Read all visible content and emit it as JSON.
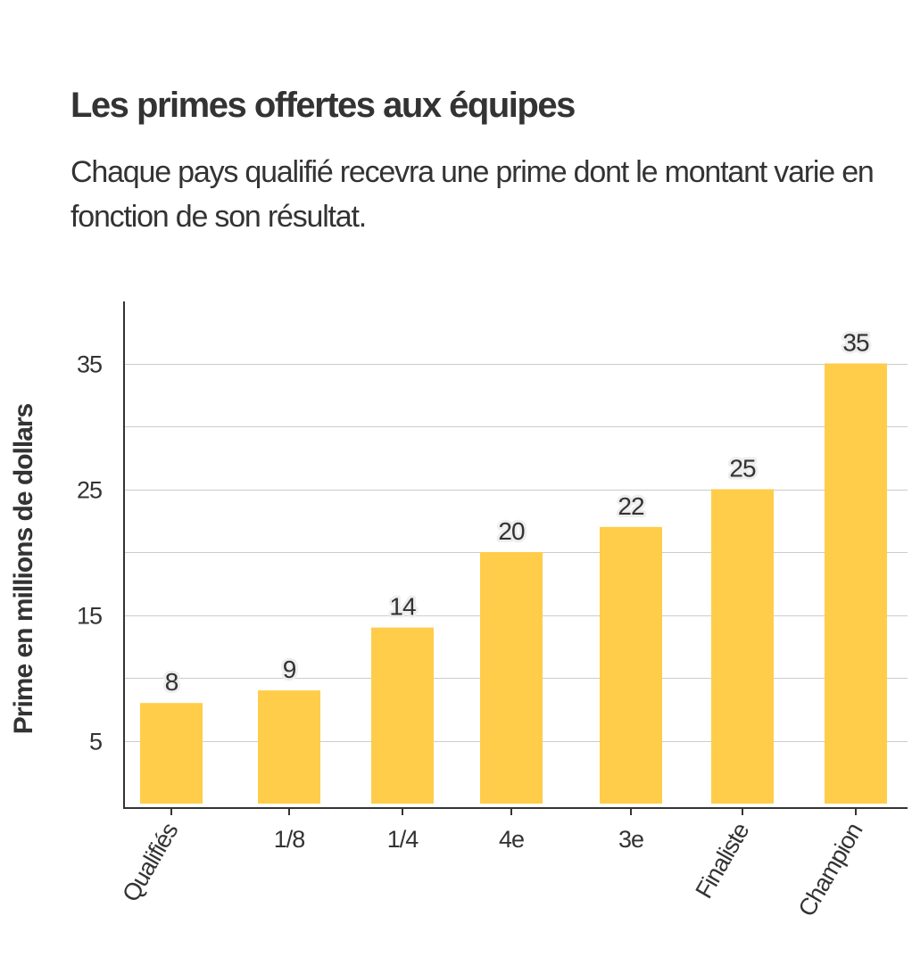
{
  "header": {
    "title": "Les primes offertes aux équipes",
    "subtitle": "Chaque pays qualifié recevra une prime dont le montant varie en fonction de son résultat."
  },
  "colors": {
    "bar": "#ffcd4a",
    "grid": "#cccccc",
    "axis": "#333333",
    "text": "#333333",
    "label_halo": "#eeeeee"
  },
  "chart_data": {
    "type": "bar",
    "categories": [
      "Qualifiés",
      "1/8",
      "1/4",
      "4e",
      "3e",
      "Finaliste",
      "Champion"
    ],
    "values": [
      8,
      9,
      14,
      20,
      22,
      25,
      35
    ],
    "data_labels": [
      "8",
      "9",
      "14",
      "20",
      "22",
      "25",
      "35"
    ],
    "title": "Les primes offertes aux équipes",
    "subtitle": "Chaque pays qualifié recevra une prime dont le montant varie en fonction de son résultat.",
    "xlabel": "",
    "ylabel": "Prime en millions de dollars",
    "ylim": [
      0,
      40
    ],
    "yticks": [
      5,
      15,
      25,
      35
    ],
    "gridlines": [
      5,
      10,
      15,
      20,
      25,
      30,
      35
    ],
    "grid": true,
    "rotated_x_labels": [
      "Qualifiés",
      "Finaliste",
      "Champion"
    ]
  }
}
